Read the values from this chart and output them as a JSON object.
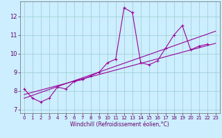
{
  "xlabel": "Windchill (Refroidissement éolien,°C)",
  "background_color": "#cceeff",
  "line_color": "#990099",
  "grid_color": "#99cccc",
  "xlim": [
    -0.5,
    23.5
  ],
  "ylim": [
    6.8,
    12.8
  ],
  "xticks": [
    0,
    1,
    2,
    3,
    4,
    5,
    6,
    7,
    8,
    9,
    10,
    11,
    12,
    13,
    14,
    15,
    16,
    17,
    18,
    19,
    20,
    21,
    22,
    23
  ],
  "yticks": [
    7,
    8,
    9,
    10,
    11,
    12
  ],
  "hours": [
    0,
    1,
    2,
    3,
    4,
    5,
    6,
    7,
    8,
    9,
    10,
    11,
    12,
    13,
    14,
    15,
    16,
    17,
    18,
    19,
    20,
    21,
    22,
    23
  ],
  "line1": [
    8.1,
    7.6,
    7.4,
    7.6,
    8.2,
    8.1,
    8.5,
    8.6,
    8.8,
    9.0,
    9.5,
    9.7,
    12.45,
    12.2,
    9.5,
    9.4,
    9.6,
    10.3,
    11.0,
    11.5,
    10.2,
    10.4,
    10.5,
    null
  ],
  "trend1_x": [
    0,
    23
  ],
  "trend1_y": [
    7.8,
    10.55
  ],
  "trend2_x": [
    0,
    23
  ],
  "trend2_y": [
    7.6,
    11.2
  ]
}
